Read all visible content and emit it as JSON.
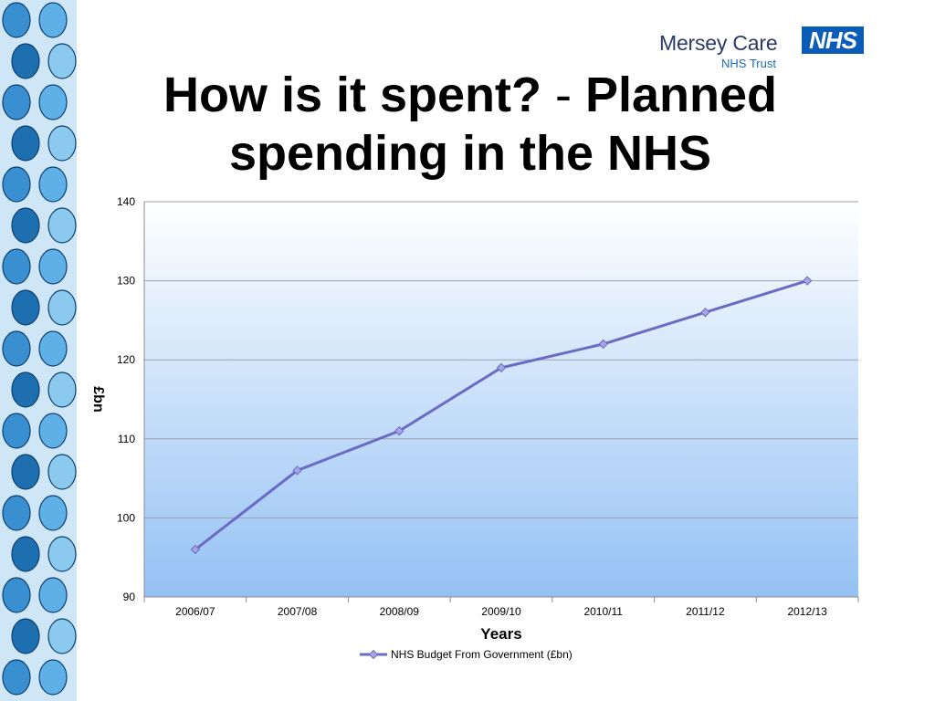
{
  "slide": {
    "title_part1": "How is it spent?",
    "title_sep": "-",
    "title_part2": "Planned spending in the NHS"
  },
  "logo": {
    "org_name": "Mersey Care",
    "org_sub": "NHS Trust",
    "badge": "NHS"
  },
  "colors": {
    "line": "#6b6bc4",
    "marker_fill": "#a6a6e0",
    "plot_bg_top": "#ffffff",
    "plot_bg_bottom": "#94c1f4",
    "gridline": "#9aa0ae",
    "nhs_blue": "#0a5cb8",
    "decor_blue": "#3a8fd0"
  },
  "decor": {
    "left_strip": "illustrated-people-strip"
  },
  "chart_data": {
    "type": "line",
    "categories": [
      "2006/07",
      "2007/08",
      "2008/09",
      "2009/10",
      "2010/11",
      "2011/12",
      "2012/13"
    ],
    "series": [
      {
        "name": "NHS Budget From Government (£bn)",
        "values": [
          96,
          106,
          111,
          119,
          122,
          126,
          130
        ]
      }
    ],
    "xlabel": "Years",
    "ylabel": "£bn",
    "ylim": [
      90,
      140
    ],
    "yticks": [
      90,
      100,
      110,
      120,
      130,
      140
    ],
    "grid": true,
    "legend": "bottom",
    "marker": "diamond"
  }
}
